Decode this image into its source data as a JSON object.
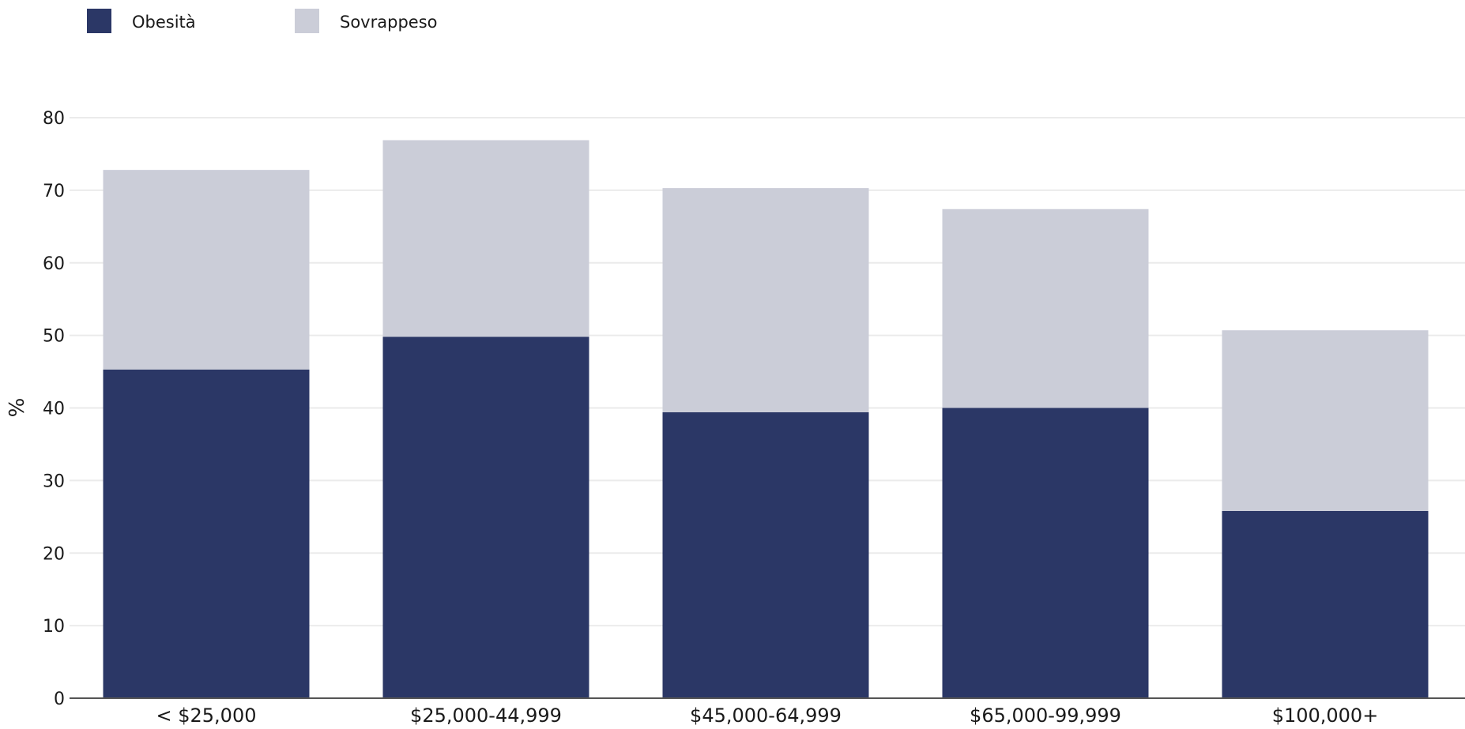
{
  "chart_data": {
    "type": "bar",
    "stacked": true,
    "categories": [
      "< $25,000",
      "$25,000-44,999",
      "$45,000-64,999",
      "$65,000-99,999",
      "$100,000+"
    ],
    "series": [
      {
        "name": "Obesità",
        "color": "#2b3766",
        "values": [
          45.3,
          49.8,
          39.4,
          40.0,
          25.8
        ]
      },
      {
        "name": "Sovrappeso",
        "color": "#cbcdd8",
        "values": [
          27.5,
          27.1,
          30.9,
          27.4,
          24.9
        ]
      }
    ],
    "ylabel": "%",
    "ylim": [
      0,
      80
    ],
    "yticks": [
      "0",
      "10",
      "20",
      "30",
      "40",
      "50",
      "60",
      "70",
      "80"
    ],
    "grid": true,
    "legend_position": "top-left"
  }
}
